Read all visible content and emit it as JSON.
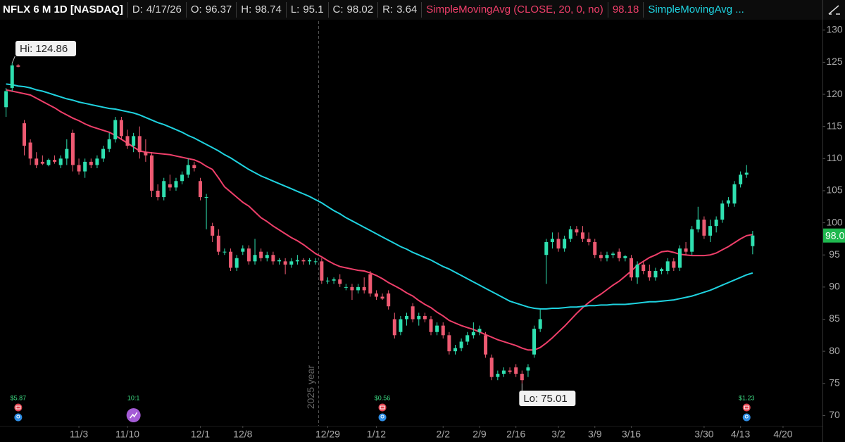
{
  "chart_data": {
    "type": "candlestick",
    "header": {
      "symbol": "NFLX 6 M 1D [NASDAQ]",
      "items": [
        {
          "label": "D:",
          "value": "4/17/26"
        },
        {
          "label": "O:",
          "value": 96.37
        },
        {
          "label": "H:",
          "value": 98.74
        },
        {
          "label": "L:",
          "value": 95.1
        },
        {
          "label": "C:",
          "value": 98.02
        },
        {
          "label": "R:",
          "value": 3.64
        }
      ]
    },
    "up_color": "#2fe0b0",
    "down_color": "#ee5a72",
    "open": [
      118,
      121,
      124.5,
      115.5,
      112.5,
      110,
      109.5,
      109,
      109.8,
      109,
      110,
      114,
      109,
      108,
      109.5,
      109,
      110,
      111.5,
      113,
      116,
      113.5,
      112,
      113.5,
      111,
      110.5,
      105,
      104,
      106,
      105.5,
      106.5,
      107.5,
      109,
      106.5,
      104,
      99.5,
      98,
      95.5,
      95.5,
      93,
      95.5,
      96,
      94,
      95.5,
      94.5,
      95,
      94,
      94,
      93.5,
      94,
      94.2,
      94,
      94,
      94,
      91,
      91,
      91.2,
      90,
      90,
      89.5,
      90,
      92,
      89,
      88.5,
      89,
      85,
      83,
      85,
      87,
      85,
      85.5,
      85,
      83,
      84,
      82.5,
      80,
      80.5,
      81.5,
      82.5,
      83,
      82.5,
      79,
      76,
      76.5,
      77,
      77.5,
      76.5,
      77,
      79.5,
      83.5,
      95,
      97,
      97.5,
      96,
      97.5,
      99,
      98.5,
      97.5,
      97,
      95,
      94.5,
      95,
      95.5,
      94.5,
      94.5,
      91.5,
      93.5,
      92.5,
      91.5,
      92.5,
      92.5,
      94,
      93,
      96,
      95.5,
      99,
      100.5,
      98,
      99.5,
      100.5,
      103,
      103,
      106,
      107.5,
      96.37
    ],
    "high": [
      121,
      124.86,
      124.7,
      116,
      113,
      111,
      110.5,
      110,
      110.5,
      110.5,
      113,
      114.5,
      110,
      110,
      110,
      110.5,
      112,
      114,
      116.5,
      116.5,
      114.5,
      114,
      115,
      113,
      111,
      106,
      107,
      107.5,
      107,
      108,
      110,
      109.5,
      107,
      104.5,
      100,
      99,
      96,
      96,
      95,
      96.5,
      96.5,
      97.5,
      96,
      95.5,
      95.5,
      94.5,
      94.5,
      94.5,
      95,
      94.5,
      94.5,
      94.5,
      94.5,
      91.5,
      91.5,
      92,
      90.5,
      90.5,
      90.5,
      91.5,
      92.5,
      89.5,
      89,
      89.5,
      86,
      85.5,
      86,
      87.5,
      86,
      86,
      85.5,
      84.5,
      84.5,
      83,
      81,
      82,
      83,
      84.5,
      84,
      83,
      79.5,
      77,
      77.5,
      77.5,
      78,
      77,
      78,
      84,
      86.5,
      97.5,
      98.5,
      98.5,
      98,
      99.5,
      99.5,
      99.5,
      98.5,
      97.5,
      95.5,
      95.5,
      95.5,
      96,
      95,
      95,
      94,
      94,
      93.5,
      93,
      93,
      94.5,
      94.5,
      96.5,
      97,
      99.5,
      102.5,
      101,
      100.5,
      101,
      103.5,
      104,
      106.5,
      108,
      109,
      98.74
    ],
    "low": [
      116.5,
      120.5,
      124.2,
      110.5,
      109,
      108.5,
      109,
      108.8,
      109.2,
      108.5,
      109,
      108,
      107.5,
      107,
      108.5,
      108.5,
      109.5,
      111,
      112.5,
      113,
      111.5,
      111,
      110,
      109.5,
      104,
      103.5,
      103.5,
      105,
      105,
      106,
      107,
      108,
      103.5,
      99,
      97,
      95,
      95,
      92.5,
      92.5,
      95,
      93.5,
      93.5,
      94,
      94,
      93.5,
      93.5,
      92,
      93,
      93.5,
      93.5,
      93.5,
      93.5,
      90.5,
      90.5,
      90.5,
      90,
      89.5,
      88,
      89,
      89,
      88.5,
      88,
      88,
      86.5,
      82,
      82.5,
      84,
      84.5,
      84,
      84.5,
      82.5,
      82.5,
      82,
      79.5,
      79.5,
      80,
      81,
      82,
      82.5,
      79,
      75.5,
      75.5,
      76,
      76.5,
      76,
      75.01,
      76,
      79,
      83,
      90.5,
      96,
      95.5,
      95.5,
      97,
      98,
      97,
      96.5,
      94.5,
      94,
      94,
      94.5,
      94,
      94,
      91,
      90.5,
      92,
      91,
      91,
      92,
      92,
      92.5,
      92.5,
      95,
      95,
      98.5,
      97.5,
      97,
      98.5,
      100,
      102.5,
      102.5,
      105.5,
      107,
      95.1
    ],
    "close": [
      120.5,
      124.5,
      124.3,
      112,
      110,
      109,
      109.2,
      109.8,
      109.5,
      110,
      111.5,
      109,
      108,
      109.5,
      109,
      110,
      111.5,
      113,
      116,
      113.5,
      112,
      113.5,
      111,
      110.5,
      105,
      104,
      106.5,
      105.5,
      106.5,
      107.5,
      109,
      108.5,
      104,
      104,
      98,
      95.5,
      95.5,
      93,
      94.5,
      96,
      94,
      95,
      94.5,
      95,
      94,
      94.2,
      93.5,
      94,
      94.2,
      94,
      94.2,
      94,
      91,
      91,
      91.2,
      90.5,
      90,
      89.5,
      90,
      89.5,
      89,
      88.5,
      88.2,
      87,
      82.5,
      85,
      85.5,
      85,
      85.5,
      85,
      83,
      84,
      82.5,
      80,
      80.5,
      81.5,
      82.5,
      83,
      83.5,
      79.5,
      76,
      76.5,
      77,
      76.8,
      76.5,
      75.5,
      77.5,
      83.5,
      85,
      97,
      97.5,
      96,
      97.5,
      99,
      98.5,
      97.5,
      97,
      95,
      94.5,
      95,
      95.2,
      94.5,
      94.8,
      91.5,
      93.5,
      92.5,
      91.5,
      92.5,
      92.8,
      94,
      93,
      96,
      95.5,
      99,
      100.5,
      98,
      99.5,
      100.5,
      103,
      103.5,
      106,
      107.5,
      107.8,
      98.02
    ],
    "overlays": [
      {
        "name": "SimpleMovingAvg (CLOSE, 20, 0, no)",
        "color": "#ef3f6a",
        "last_value": 98.18,
        "values": [
          120.7,
          120.5,
          120.3,
          120.1,
          119.9,
          119.4,
          118.9,
          118.4,
          117.9,
          117.3,
          116.8,
          116.3,
          115.9,
          115.4,
          115.0,
          114.7,
          114.4,
          114.1,
          113.6,
          113.0,
          112.4,
          111.8,
          111.2,
          111.0,
          110.9,
          110.8,
          110.7,
          110.6,
          110.4,
          110.2,
          110.0,
          109.8,
          109.4,
          108.8,
          108.3,
          107.0,
          105.6,
          104.8,
          104.0,
          103.2,
          102.6,
          101.7,
          100.8,
          100.2,
          99.5,
          98.9,
          98.3,
          97.7,
          97.2,
          96.6,
          95.9,
          95.2,
          94.7,
          94.1,
          93.6,
          93.2,
          93.0,
          92.8,
          92.6,
          92.5,
          92.2,
          91.8,
          91.3,
          90.7,
          90.2,
          89.7,
          89.1,
          88.6,
          87.9,
          87.3,
          86.8,
          86.1,
          85.5,
          84.8,
          84.4,
          84.0,
          83.7,
          83.4,
          83.0,
          82.6,
          82.2,
          81.8,
          81.5,
          81.2,
          80.9,
          80.5,
          80.2,
          80.2,
          80.6,
          81.3,
          82.1,
          83.0,
          83.9,
          84.9,
          85.9,
          86.8,
          87.6,
          88.3,
          88.9,
          89.6,
          90.3,
          90.9,
          91.7,
          92.5,
          93.4,
          94.0,
          94.6,
          95.0,
          95.5,
          95.6,
          95.4,
          95.1,
          95.0,
          94.9,
          94.9,
          94.9,
          95.0,
          95.3,
          95.8,
          96.3,
          96.9,
          97.5,
          98.0,
          98.18
        ]
      },
      {
        "name": "SimpleMovingAvg ...",
        "color": "#1fd3e0",
        "values": [
          121.6,
          121.5,
          121.3,
          121.2,
          121.0,
          120.7,
          120.5,
          120.2,
          119.9,
          119.6,
          119.3,
          119.1,
          118.8,
          118.6,
          118.4,
          118.2,
          118.0,
          117.8,
          117.7,
          117.5,
          117.3,
          117.1,
          116.8,
          116.4,
          116.0,
          115.6,
          115.3,
          114.9,
          114.5,
          114.1,
          113.6,
          113.2,
          112.7,
          112.2,
          111.7,
          111.2,
          110.6,
          110.1,
          109.5,
          108.9,
          108.3,
          107.8,
          107.3,
          106.9,
          106.5,
          106.1,
          105.7,
          105.3,
          104.9,
          104.5,
          104.1,
          103.6,
          103.1,
          102.5,
          101.9,
          101.4,
          100.8,
          100.3,
          99.8,
          99.3,
          98.8,
          98.3,
          97.8,
          97.3,
          96.8,
          96.3,
          95.9,
          95.4,
          95.0,
          94.6,
          94.2,
          93.7,
          93.2,
          92.8,
          92.3,
          91.8,
          91.3,
          90.8,
          90.3,
          89.8,
          89.3,
          88.8,
          88.3,
          87.8,
          87.5,
          87.2,
          86.9,
          86.7,
          86.6,
          86.6,
          86.7,
          86.7,
          86.8,
          86.9,
          86.9,
          87.0,
          87.1,
          87.1,
          87.2,
          87.2,
          87.3,
          87.3,
          87.3,
          87.4,
          87.5,
          87.6,
          87.7,
          87.7,
          87.8,
          87.9,
          88.0,
          88.2,
          88.4,
          88.6,
          88.9,
          89.2,
          89.5,
          89.9,
          90.3,
          90.7,
          91.1,
          91.5,
          91.9,
          92.2
        ]
      }
    ],
    "annotations": [
      {
        "label": "Hi:",
        "value": 124.86,
        "at": 1
      },
      {
        "label": "Lo:",
        "value": 75.01,
        "at": 85
      }
    ],
    "events": [
      {
        "label": "$5.87",
        "at": 2,
        "icon": "earnings"
      },
      {
        "label": "10:1",
        "at": 21,
        "icon": "split"
      },
      {
        "label": "$0.56",
        "at": 62,
        "icon": "earnings"
      },
      {
        "label": "$1.23",
        "at": 122,
        "icon": "earnings"
      }
    ],
    "year_marker": {
      "label": "2025 year",
      "at": 51.5
    },
    "xlim": [
      -1,
      134.5
    ],
    "xticks": [
      {
        "value": 12,
        "label": "11/3"
      },
      {
        "value": 20,
        "label": "11/10"
      },
      {
        "value": 32,
        "label": "12/1"
      },
      {
        "value": 39,
        "label": "12/8"
      },
      {
        "value": 53,
        "label": "12/29"
      },
      {
        "value": 61,
        "label": "1/12"
      },
      {
        "value": 72,
        "label": "2/2"
      },
      {
        "value": 78,
        "label": "2/9"
      },
      {
        "value": 84,
        "label": "2/16"
      },
      {
        "value": 91,
        "label": "3/2"
      },
      {
        "value": 97,
        "label": "3/9"
      },
      {
        "value": 103,
        "label": "3/16"
      },
      {
        "value": 115,
        "label": "3/30"
      },
      {
        "value": 121,
        "label": "4/13"
      },
      {
        "value": 128,
        "label": "4/20"
      }
    ],
    "ylim": [
      68.4,
      131.4
    ],
    "yticks": [
      70,
      75,
      80,
      85,
      90,
      95,
      100,
      105,
      110,
      115,
      120,
      125,
      130
    ]
  }
}
